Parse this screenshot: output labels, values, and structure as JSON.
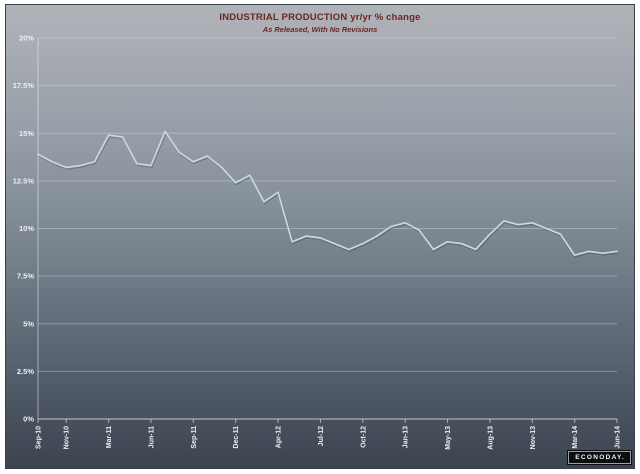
{
  "header": {
    "title": "INDUSTRIAL PRODUCTION yr/yr % change",
    "subtitle": "As Released, With No Revisions"
  },
  "branding": {
    "logo_text": "ECONODAY."
  },
  "colors": {
    "title_text": "#6f2420",
    "axis_text": "#edf0f3",
    "line": "#c9d8e6",
    "background_top": "#b0b4b9",
    "background_bottom": "#3b4450"
  },
  "chart_data": {
    "type": "line",
    "title": "INDUSTRIAL PRODUCTION yr/yr % change",
    "subtitle": "As Released, With No Revisions",
    "ylim": [
      0,
      20
    ],
    "grid": "horizontal",
    "legend": "none",
    "y_ticks": [
      {
        "value": 20,
        "label": "20%"
      },
      {
        "value": 17.5,
        "label": "17.5%"
      },
      {
        "value": 15,
        "label": "15%"
      },
      {
        "value": 12.5,
        "label": "12.5%"
      },
      {
        "value": 10,
        "label": "10%"
      },
      {
        "value": 7.5,
        "label": "7.5%"
      },
      {
        "value": 5,
        "label": "5%"
      },
      {
        "value": 2.5,
        "label": "2.5%"
      },
      {
        "value": 0,
        "label": "0%"
      }
    ],
    "x_ticks": [
      {
        "index": 0,
        "label": "Sep-10"
      },
      {
        "index": 2,
        "label": "Nov-10"
      },
      {
        "index": 5,
        "label": "Mar-11"
      },
      {
        "index": 8,
        "label": "Jun-11"
      },
      {
        "index": 11,
        "label": "Sep-11"
      },
      {
        "index": 14,
        "label": "Dec-11"
      },
      {
        "index": 17,
        "label": "Apr-12"
      },
      {
        "index": 20,
        "label": "Jul-12"
      },
      {
        "index": 23,
        "label": "Oct-12"
      },
      {
        "index": 26,
        "label": "Jan-13"
      },
      {
        "index": 29,
        "label": "May-13"
      },
      {
        "index": 32,
        "label": "Aug-13"
      },
      {
        "index": 35,
        "label": "Nov-13"
      },
      {
        "index": 38,
        "label": "Mar-14"
      },
      {
        "index": 41,
        "label": "Jun-14"
      }
    ],
    "series": [
      {
        "name": "Industrial production yr/yr % change, as released",
        "values": [
          13.9,
          13.5,
          13.2,
          13.3,
          13.5,
          14.9,
          14.8,
          13.4,
          13.3,
          15.1,
          14.0,
          13.5,
          13.8,
          13.2,
          12.4,
          12.8,
          11.4,
          11.9,
          9.3,
          9.6,
          9.5,
          9.2,
          8.9,
          9.2,
          9.6,
          10.1,
          10.3,
          9.9,
          8.9,
          9.3,
          9.2,
          8.9,
          9.7,
          10.4,
          10.2,
          10.3,
          10.0,
          9.7,
          8.6,
          8.8,
          8.7,
          8.8
        ]
      }
    ]
  }
}
